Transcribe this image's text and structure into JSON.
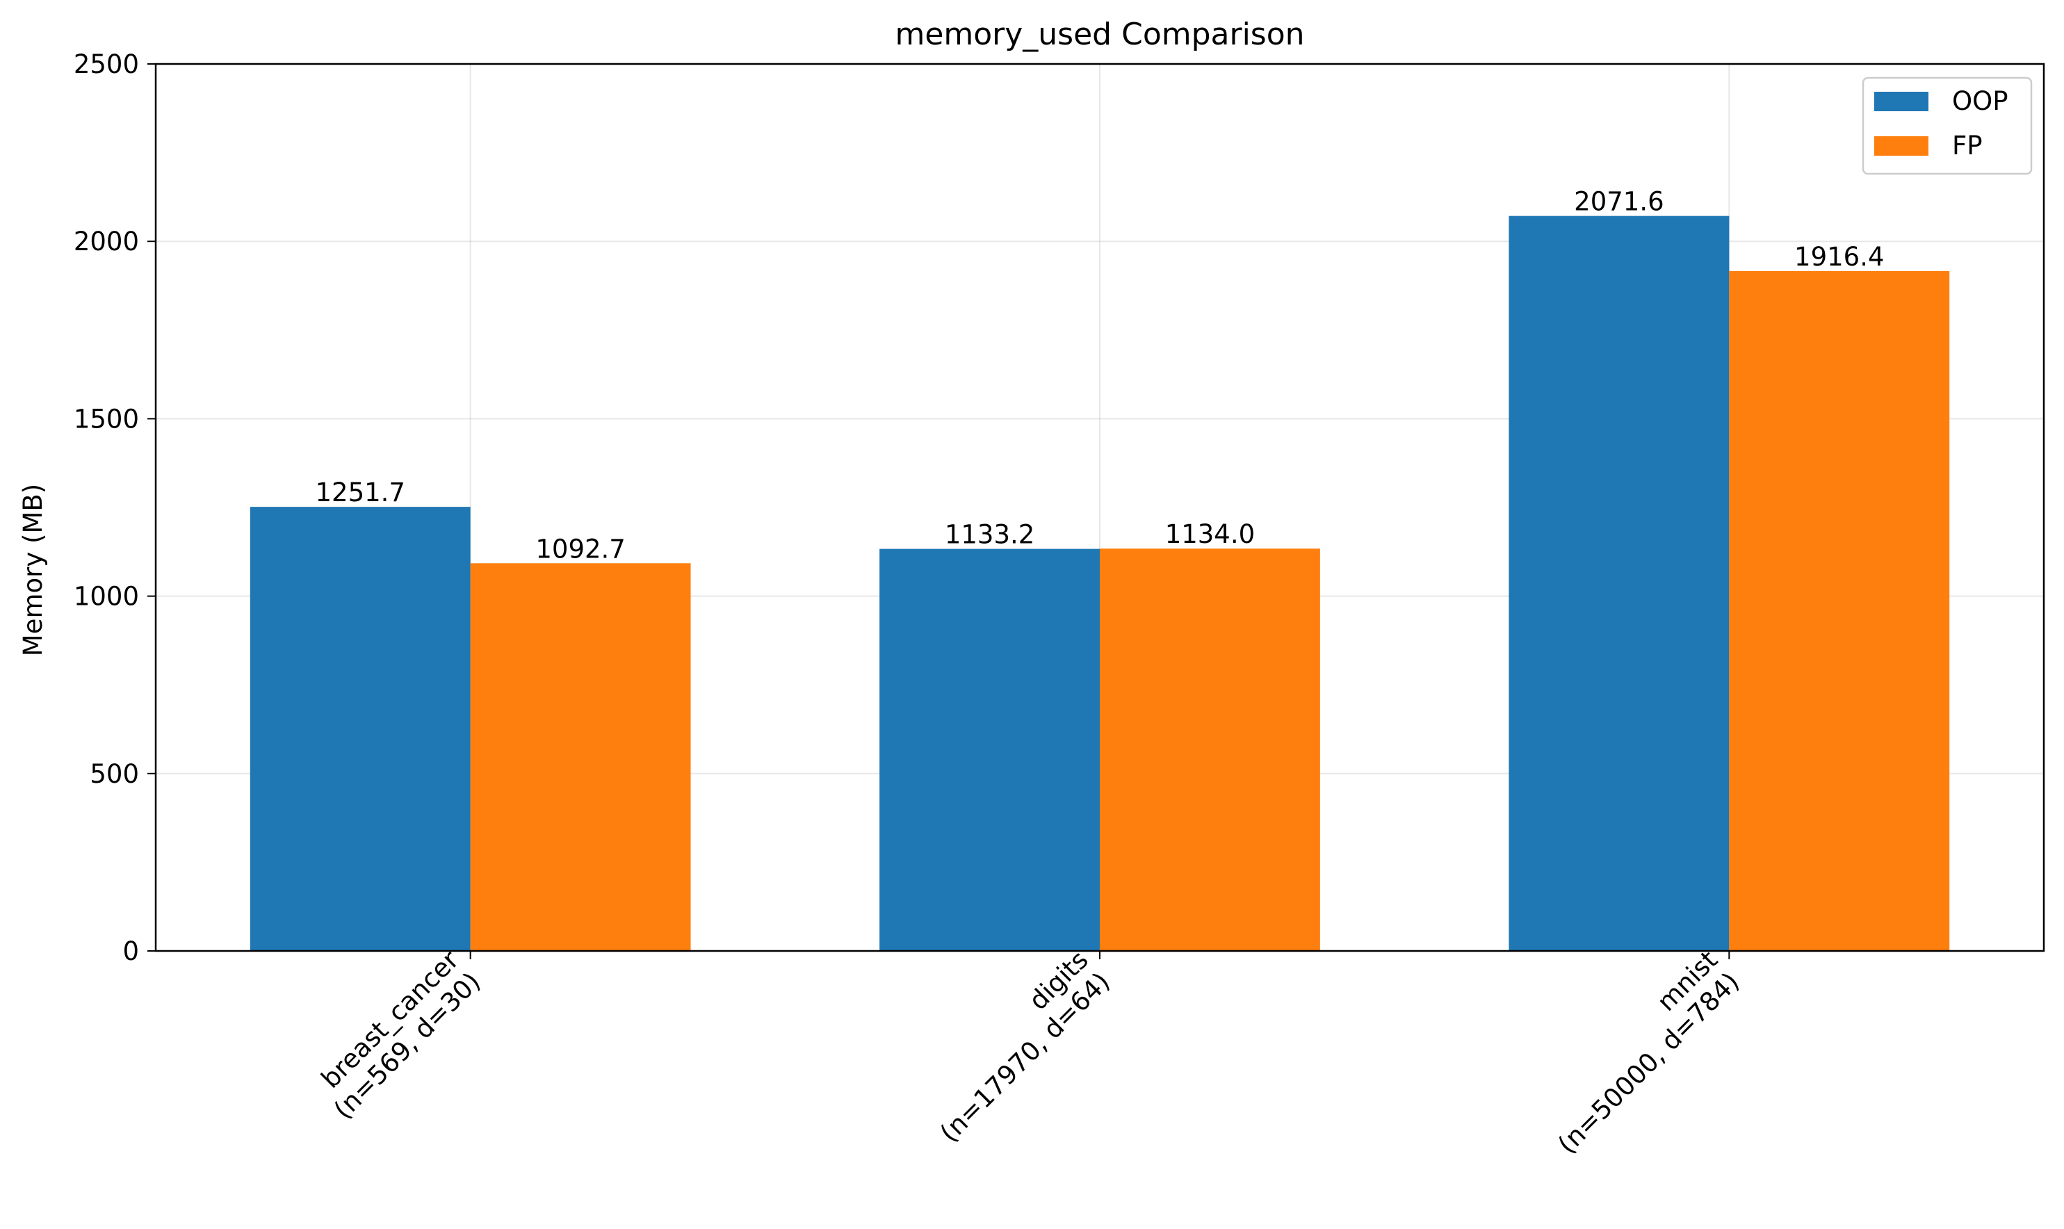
{
  "chart_data": {
    "type": "bar",
    "title": "memory_used Comparison",
    "xlabel": "",
    "ylabel": "Memory (MB)",
    "ylim": [
      0,
      2500
    ],
    "yticks": [
      0,
      500,
      1000,
      1500,
      2000,
      2500
    ],
    "categories": [
      "breast_cancer\n(n=569, d=30)",
      "digits\n(n=17970, d=64)",
      "mnist\n(n=50000, d=784)"
    ],
    "series": [
      {
        "name": "OOP",
        "color": "#1f77b4",
        "values": [
          1251.7,
          1133.2,
          2071.6
        ],
        "labels": [
          "1251.7",
          "1133.2",
          "2071.6"
        ]
      },
      {
        "name": "FP",
        "color": "#ff7f0e",
        "values": [
          1092.7,
          1134.0,
          1916.4
        ],
        "labels": [
          "1092.7",
          "1134.0",
          "1916.4"
        ]
      }
    ],
    "grid": true,
    "legend_position": "top-right"
  }
}
